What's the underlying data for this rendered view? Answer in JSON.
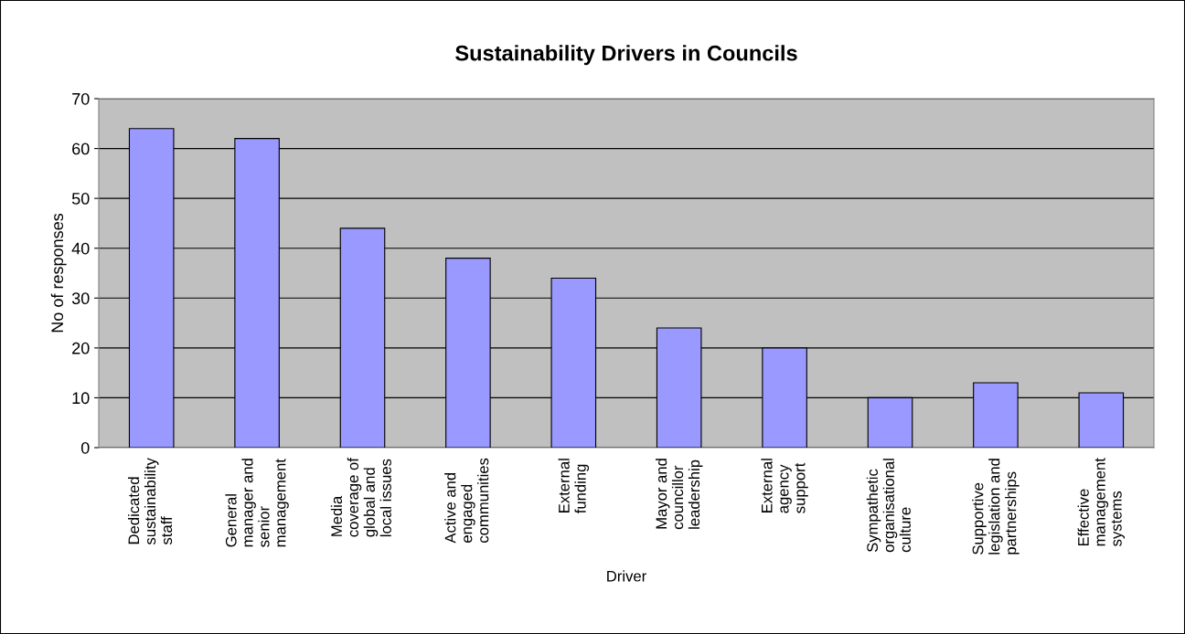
{
  "chart_data": {
    "type": "bar",
    "title": "Sustainability Drivers in Councils",
    "xlabel": "Driver",
    "ylabel": "No of responses",
    "categories": [
      "Dedicated\nsustainability\nstaff",
      "General\nmanager and\nsenior\nmanagement",
      "Media\ncoverage of\nglobal and\nlocal issues",
      "Active and\nengaged\ncommunities",
      "External\nfunding",
      "Mayor and\ncouncillor\nleadership",
      "External\nagency\nsupport",
      "Sympathetic\norganisational\nculture",
      "Supportive\nlegislation and\npartnerships",
      "Effective\nmanagement\nsystems"
    ],
    "values": [
      64,
      62,
      44,
      38,
      34,
      24,
      20,
      10,
      13,
      11
    ],
    "color": "#9999ff",
    "ylim": [
      0,
      70
    ],
    "yticks": [
      0,
      10,
      20,
      30,
      40,
      50,
      60,
      70
    ],
    "grid": "y",
    "legend": false
  }
}
